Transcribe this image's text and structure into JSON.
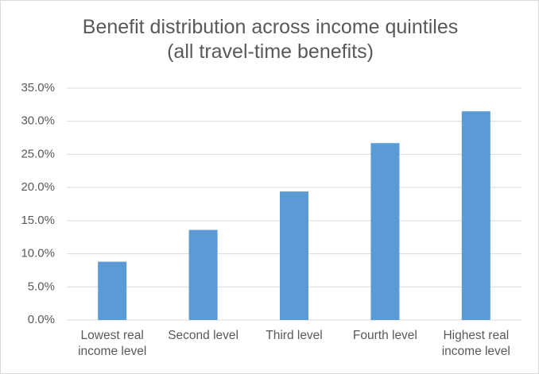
{
  "chart_data": {
    "type": "bar",
    "title": "Benefit distribution across income quintiles (all travel-time benefits)",
    "categories": [
      "Lowest real income level",
      "Second level",
      "Third level",
      "Fourth level",
      "Highest real income level"
    ],
    "values": [
      8.8,
      13.6,
      19.4,
      26.7,
      31.5
    ],
    "color": "#5b9bd5",
    "ylim": [
      0,
      35
    ],
    "yticks": [
      {
        "value": 0,
        "label": "0.0%"
      },
      {
        "value": 5,
        "label": "5.0%"
      },
      {
        "value": 10,
        "label": "10.0%"
      },
      {
        "value": 15,
        "label": "15.0%"
      },
      {
        "value": 20,
        "label": "20.0%"
      },
      {
        "value": 25,
        "label": "25.0%"
      },
      {
        "value": 30,
        "label": "30.0%"
      },
      {
        "value": 35,
        "label": "35.0%"
      }
    ],
    "grid": true
  }
}
